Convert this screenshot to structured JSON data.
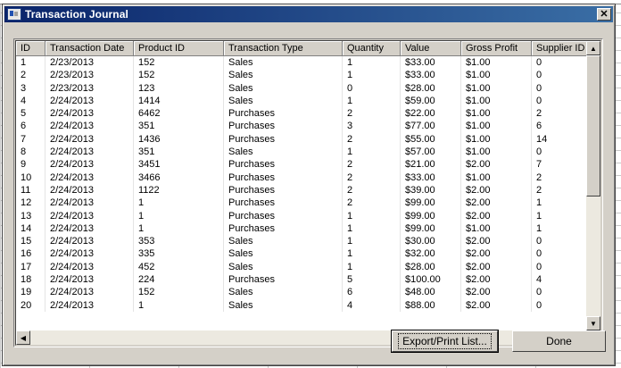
{
  "window": {
    "title": "Transaction Journal"
  },
  "columns": [
    "ID",
    "Transaction Date",
    "Product ID",
    "Transaction Type",
    "Quantity",
    "Value",
    "Gross Profit",
    "Supplier ID"
  ],
  "rows": [
    [
      "1",
      "2/23/2013",
      "152",
      "Sales",
      "1",
      "$33.00",
      "$1.00",
      "0"
    ],
    [
      "2",
      "2/23/2013",
      "152",
      "Sales",
      "1",
      "$33.00",
      "$1.00",
      "0"
    ],
    [
      "3",
      "2/23/2013",
      "123",
      "Sales",
      "0",
      "$28.00",
      "$1.00",
      "0"
    ],
    [
      "4",
      "2/24/2013",
      "1414",
      "Sales",
      "1",
      "$59.00",
      "$1.00",
      "0"
    ],
    [
      "5",
      "2/24/2013",
      "6462",
      "Purchases",
      "2",
      "$22.00",
      "$1.00",
      "2"
    ],
    [
      "6",
      "2/24/2013",
      "351",
      "Purchases",
      "3",
      "$77.00",
      "$1.00",
      "6"
    ],
    [
      "7",
      "2/24/2013",
      "1436",
      "Purchases",
      "2",
      "$55.00",
      "$1.00",
      "14"
    ],
    [
      "8",
      "2/24/2013",
      "351",
      "Sales",
      "1",
      "$57.00",
      "$1.00",
      "0"
    ],
    [
      "9",
      "2/24/2013",
      "3451",
      "Purchases",
      "2",
      "$21.00",
      "$2.00",
      "7"
    ],
    [
      "10",
      "2/24/2013",
      "3466",
      "Purchases",
      "2",
      "$33.00",
      "$1.00",
      "2"
    ],
    [
      "11",
      "2/24/2013",
      "1122",
      "Purchases",
      "2",
      "$39.00",
      "$2.00",
      "2"
    ],
    [
      "12",
      "2/24/2013",
      "1",
      "Purchases",
      "2",
      "$99.00",
      "$2.00",
      "1"
    ],
    [
      "13",
      "2/24/2013",
      "1",
      "Purchases",
      "1",
      "$99.00",
      "$2.00",
      "1"
    ],
    [
      "14",
      "2/24/2013",
      "1",
      "Purchases",
      "1",
      "$99.00",
      "$1.00",
      "1"
    ],
    [
      "15",
      "2/24/2013",
      "353",
      "Sales",
      "1",
      "$30.00",
      "$2.00",
      "0"
    ],
    [
      "16",
      "2/24/2013",
      "335",
      "Sales",
      "1",
      "$32.00",
      "$2.00",
      "0"
    ],
    [
      "17",
      "2/24/2013",
      "452",
      "Sales",
      "1",
      "$28.00",
      "$2.00",
      "0"
    ],
    [
      "18",
      "2/24/2013",
      "224",
      "Purchases",
      "5",
      "$100.00",
      "$2.00",
      "4"
    ],
    [
      "19",
      "2/24/2013",
      "152",
      "Sales",
      "6",
      "$48.00",
      "$2.00",
      "0"
    ],
    [
      "20",
      "2/24/2013",
      "1",
      "Sales",
      "4",
      "$88.00",
      "$2.00",
      "0"
    ]
  ],
  "buttons": {
    "export": "Export/Print List...",
    "done": "Done"
  },
  "icons": {
    "close": "close-icon",
    "app": "journal-icon",
    "scroll_up": "arrow-up-icon",
    "scroll_down": "arrow-down-icon",
    "scroll_left": "arrow-left-icon",
    "scroll_right": "arrow-right-icon"
  }
}
